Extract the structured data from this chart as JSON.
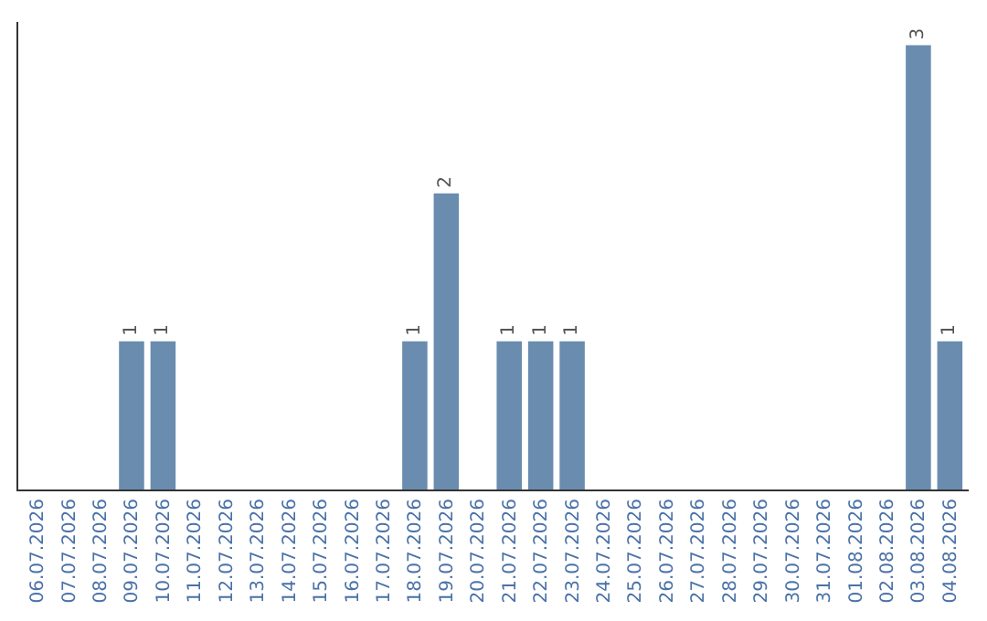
{
  "chart_data": {
    "type": "bar",
    "categories": [
      "06.07.2026",
      "07.07.2026",
      "08.07.2026",
      "09.07.2026",
      "10.07.2026",
      "11.07.2026",
      "12.07.2026",
      "13.07.2026",
      "14.07.2026",
      "15.07.2026",
      "16.07.2026",
      "17.07.2026",
      "18.07.2026",
      "19.07.2026",
      "20.07.2026",
      "21.07.2026",
      "22.07.2026",
      "23.07.2026",
      "24.07.2026",
      "25.07.2026",
      "26.07.2026",
      "27.07.2026",
      "28.07.2026",
      "29.07.2026",
      "30.07.2026",
      "31.07.2026",
      "01.08.2026",
      "02.08.2026",
      "03.08.2026",
      "04.08.2026"
    ],
    "values": [
      0,
      0,
      0,
      1,
      1,
      0,
      0,
      0,
      0,
      0,
      0,
      0,
      1,
      2,
      0,
      1,
      1,
      1,
      0,
      0,
      0,
      0,
      0,
      0,
      0,
      0,
      0,
      0,
      3,
      1
    ],
    "value_labels": [
      null,
      null,
      null,
      "1",
      "1",
      null,
      null,
      null,
      null,
      null,
      null,
      null,
      "1",
      "2",
      null,
      "1",
      "1",
      "1",
      null,
      null,
      null,
      null,
      null,
      null,
      null,
      null,
      null,
      null,
      "3",
      "1"
    ],
    "color": "#6a8caf"
  }
}
